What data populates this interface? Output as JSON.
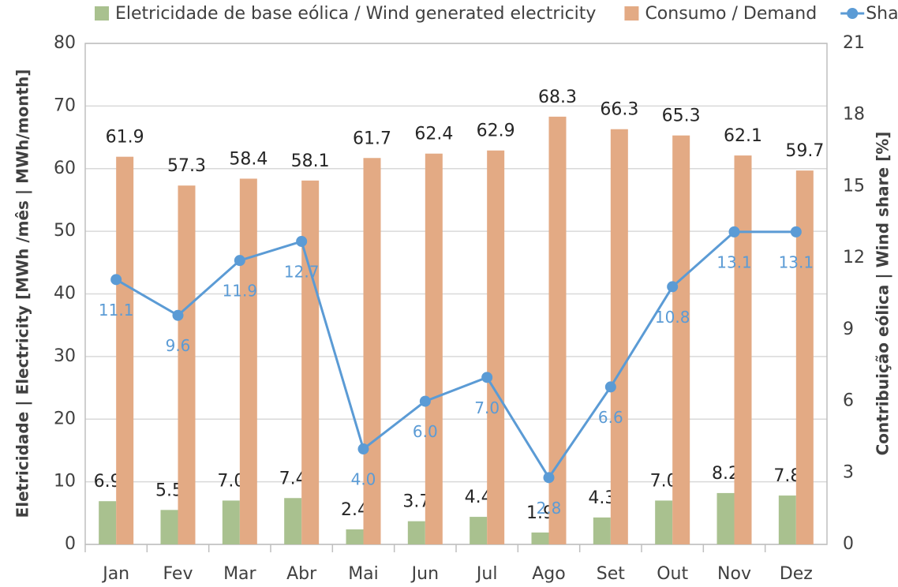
{
  "chart_data": {
    "type": "bar_line",
    "y_label": "Eletricidade | Electricity [MWh /mês | MWh/month]",
    "y2_label": "Contribuição eólica | Wind share [%]",
    "categories": [
      "Jan",
      "Fev",
      "Mar",
      "Abr",
      "Mai",
      "Jun",
      "Jul",
      "Ago",
      "Set",
      "Out",
      "Nov",
      "Dez"
    ],
    "series": [
      {
        "name": "Eletricidade de base eólica / Wind generated electricity",
        "color": "#a9c18f",
        "kind": "bar",
        "values": [
          6.9,
          5.5,
          7.0,
          7.4,
          2.4,
          3.7,
          4.4,
          1.9,
          4.3,
          7.0,
          8.2,
          7.8
        ],
        "value_labels": [
          "6.9",
          "5.5",
          "7.0",
          "7.4",
          "2.4",
          "3.7",
          "4.4",
          "1.9",
          "4.3",
          "7.0",
          "8.2",
          "7.8"
        ]
      },
      {
        "name": "Consumo / Demand",
        "color": "#e3aa84",
        "kind": "bar",
        "values": [
          61.9,
          57.3,
          58.4,
          58.1,
          61.7,
          62.4,
          62.9,
          68.3,
          66.3,
          65.3,
          62.1,
          59.7
        ],
        "value_labels": [
          "61.9",
          "57.3",
          "58.4",
          "58.1",
          "61.7",
          "62.4",
          "62.9",
          "68.3",
          "66.3",
          "65.3",
          "62.1",
          "59.7"
        ]
      },
      {
        "name": "Share",
        "color": "#5b9bd5",
        "kind": "line",
        "axis": "y2",
        "values": [
          11.1,
          9.6,
          11.9,
          12.7,
          4.0,
          6.0,
          7.0,
          2.8,
          6.6,
          10.8,
          13.1,
          13.1
        ],
        "value_labels": [
          "11.1",
          "9.6",
          "11.9",
          "12.7",
          "4.0",
          "6.0",
          "7.0",
          "2.8",
          "6.6",
          "10.8",
          "13.1",
          "13.1"
        ]
      }
    ],
    "ylim": [
      0,
      80
    ],
    "yticks": [
      0,
      10,
      20,
      30,
      40,
      50,
      60,
      70,
      80
    ],
    "y2lim": [
      0,
      21
    ],
    "y2ticks": [
      0,
      3,
      6,
      9,
      12,
      15,
      18,
      21
    ],
    "grid": true,
    "legend": "top"
  }
}
